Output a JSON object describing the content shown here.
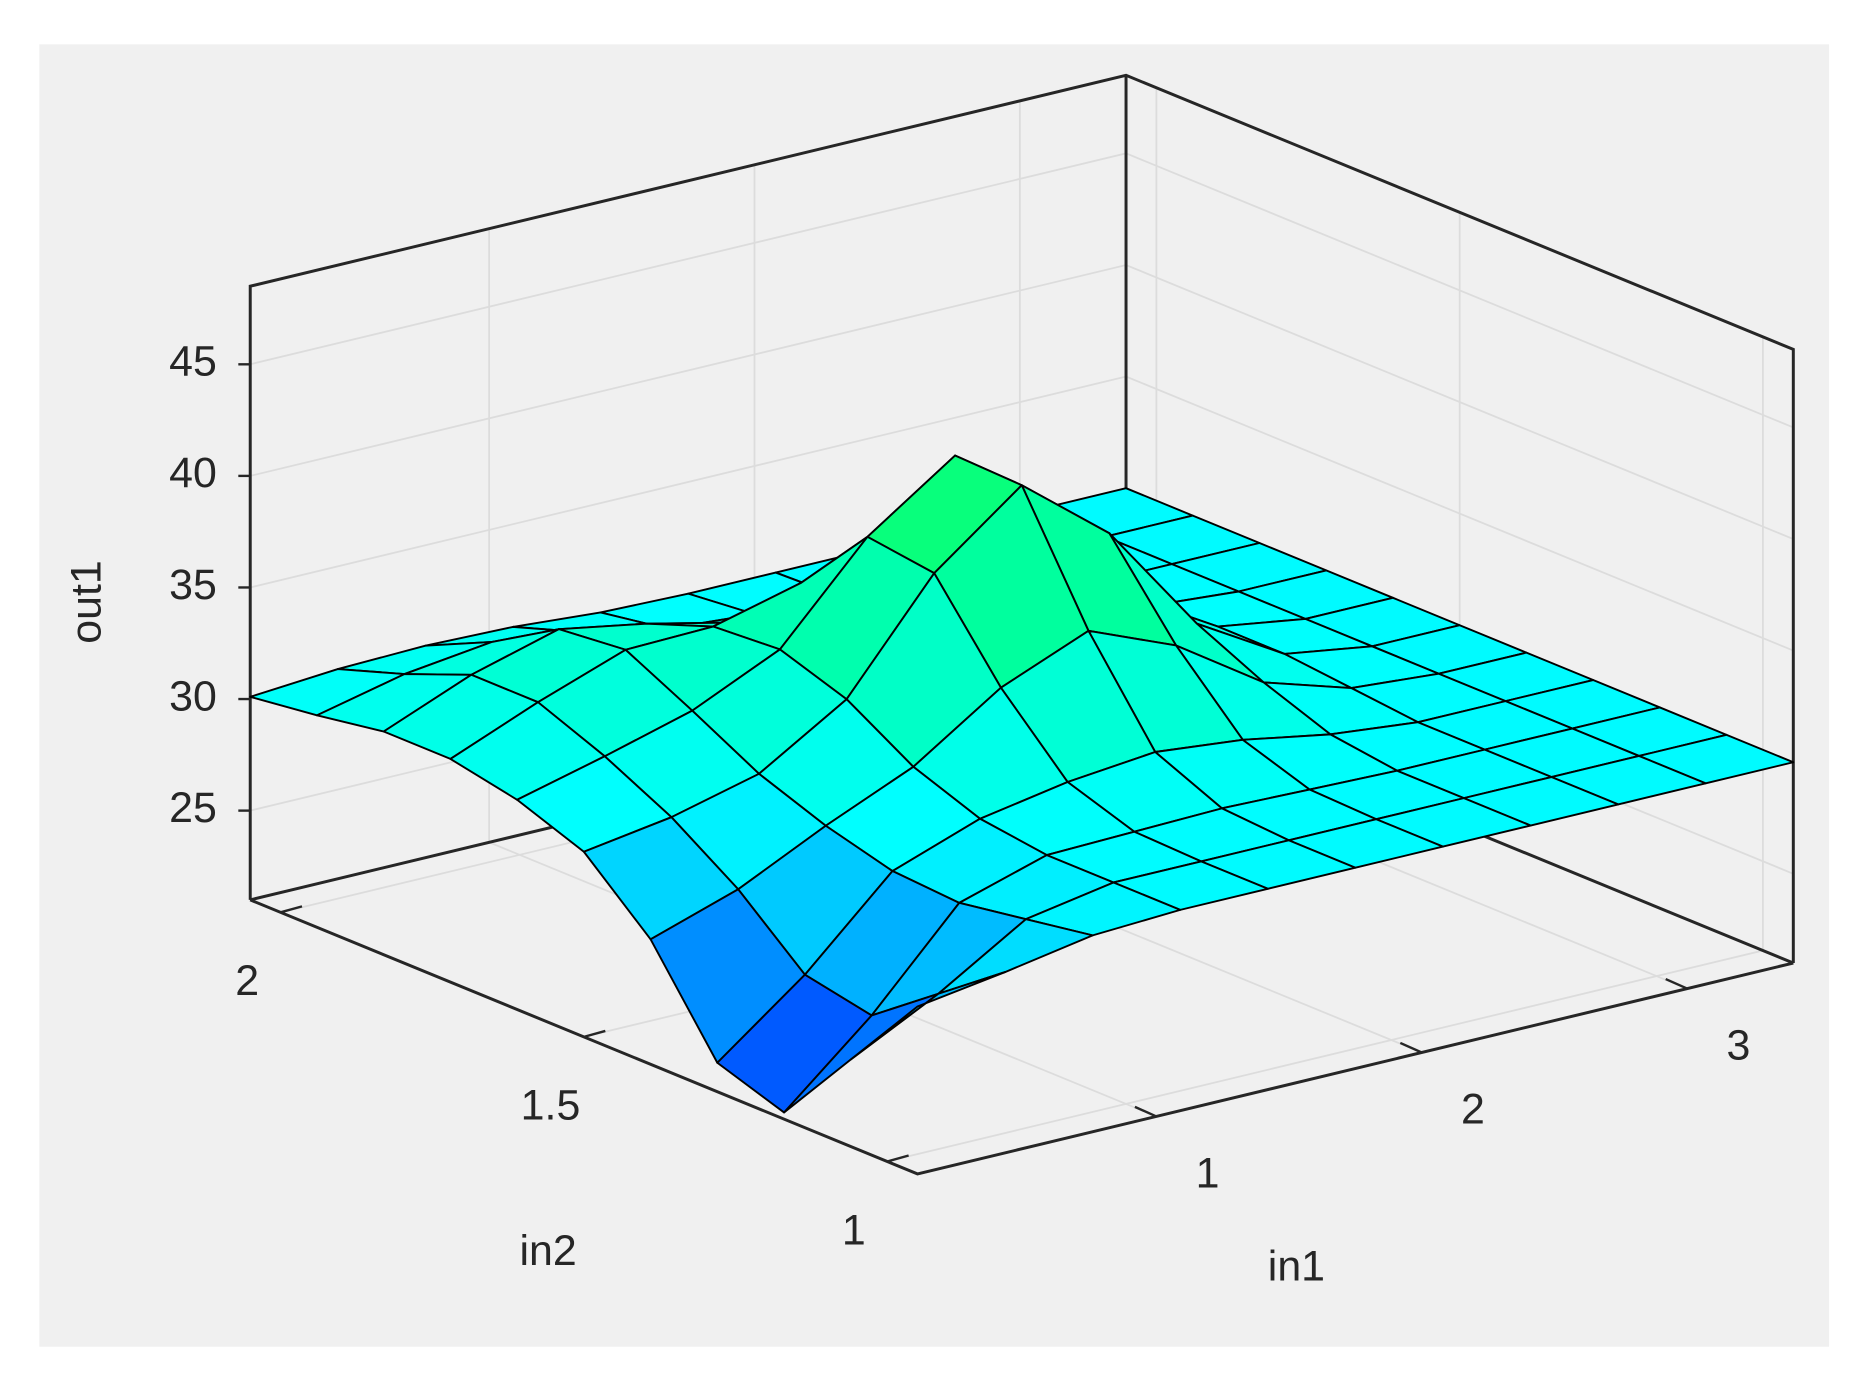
{
  "chart_data": {
    "type": "surface",
    "xlabel": "in1",
    "ylabel": "in2",
    "zlabel": "out1",
    "x": [
      0.1,
      0.43,
      0.76,
      1.09,
      1.42,
      1.75,
      2.08,
      2.41,
      2.74,
      3.07,
      3.4
    ],
    "y": [
      0.95,
      1.06,
      1.17,
      1.28,
      1.39,
      1.5,
      1.61,
      1.72,
      1.83,
      1.94,
      2.05
    ],
    "z": [
      [
        28.5,
        29.1,
        29.8,
        30,
        30,
        30,
        30,
        30,
        30,
        30,
        30
      ],
      [
        24.9,
        26.9,
        29.3,
        30,
        30,
        30,
        30,
        30,
        30,
        30,
        30
      ],
      [
        21.3,
        24.7,
        28.8,
        30,
        30.1,
        30.2,
        30.1,
        30,
        30,
        30,
        30
      ],
      [
        22.3,
        25.3,
        29.0,
        30.4,
        31.1,
        31.5,
        31.1,
        30.4,
        30,
        30,
        30
      ],
      [
        26.6,
        27.9,
        29.8,
        31.5,
        34.1,
        35.7,
        34.1,
        31.5,
        30.3,
        30,
        30
      ],
      [
        29.3,
        29.9,
        30.9,
        33.3,
        38.0,
        41.0,
        37.9,
        32.9,
        30.6,
        30,
        30
      ],
      [
        30.4,
        31.4,
        32.5,
        34.3,
        38.4,
        41.1,
        37.9,
        32.9,
        30.6,
        30,
        30
      ],
      [
        31.0,
        32.6,
        34.0,
        34.1,
        35.1,
        35.9,
        34.1,
        31.5,
        30.3,
        30,
        30
      ],
      [
        31.0,
        32.6,
        33.7,
        33.0,
        32.1,
        31.7,
        31.1,
        30.4,
        30,
        30,
        30
      ],
      [
        30.5,
        31.4,
        31.9,
        31.4,
        30.6,
        30.3,
        30.1,
        30,
        30,
        30,
        30
      ],
      [
        30.1,
        30.4,
        30.5,
        30.4,
        30.1,
        30,
        30,
        30,
        30,
        30,
        30
      ]
    ],
    "xlim": [
      0.1,
      3.4
    ],
    "ylim": [
      0.95,
      2.05
    ],
    "zlim": [
      21,
      48.5
    ],
    "xticks": [
      1,
      2,
      3
    ],
    "yticks": [
      1,
      1.5,
      2
    ],
    "zticks": [
      25,
      30,
      35,
      40,
      45
    ],
    "grid": true,
    "colormap": [
      "#0020ff",
      "#00ffff",
      "#00ff80",
      "#ffff00"
    ]
  }
}
